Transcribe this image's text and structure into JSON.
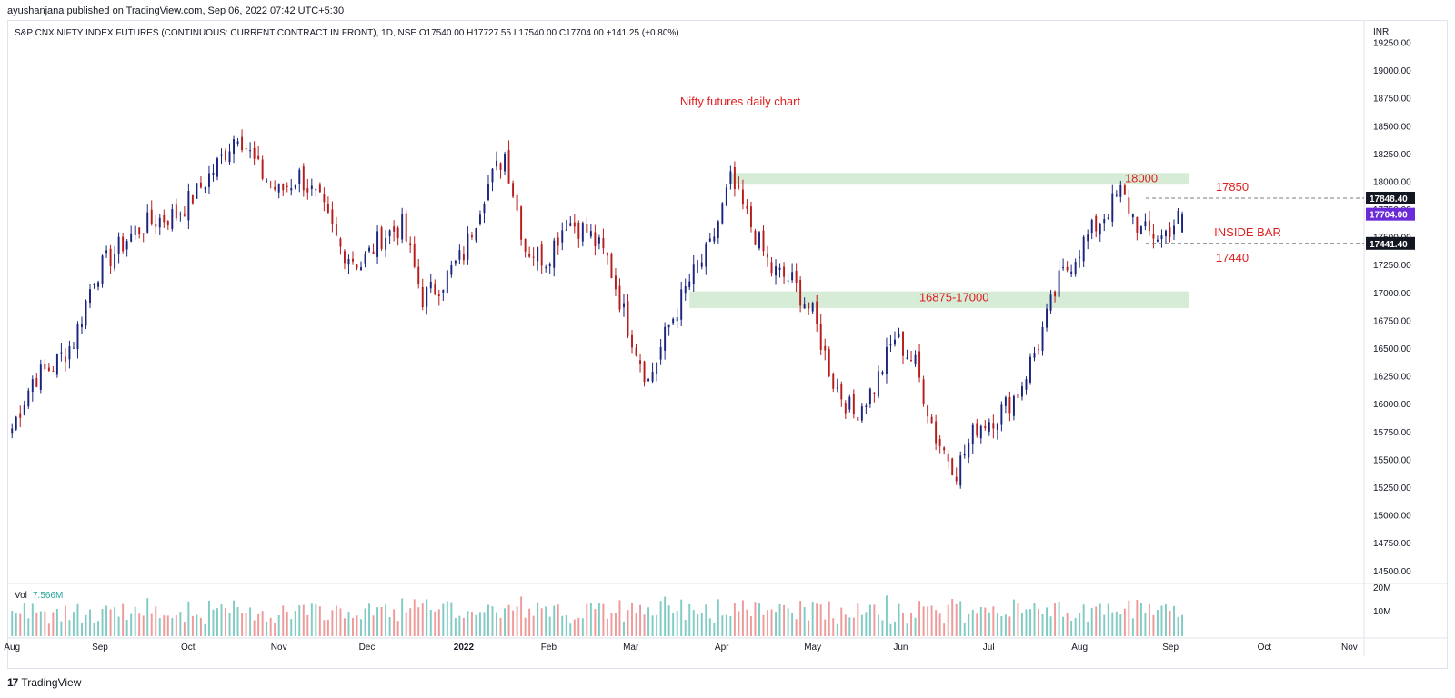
{
  "header": {
    "publisher": "ayushanjana published on TradingView.com, Sep 06, 2022 07:42 UTC+5:30",
    "symbol_line": "S&P CNX NIFTY INDEX FUTURES (CONTINUOUS: CURRENT CONTRACT IN FRONT), 1D, NSE",
    "ohlc": {
      "o": "O17540.00",
      "h": "H17727.55",
      "l": "L17540.00",
      "c": "C17704.00",
      "chg": "+141.25 (+0.80%)"
    }
  },
  "footer": {
    "brand": "TradingView",
    "logo": "tv-logo-icon"
  },
  "colors": {
    "up": "#1a237e",
    "down": "#b71c1c",
    "vol_up": "#80cbc4",
    "vol_down": "#ef9a9a",
    "zone": "#c8e6c9",
    "annot": "#e02020",
    "price_tag": "#6c2bd9",
    "tag_dark": "#131722"
  },
  "chart_data": {
    "type": "candlestick",
    "title": "Nifty futures daily chart",
    "currency": "INR",
    "ylim": [
      14400,
      19450
    ],
    "y_ticks": [
      14500,
      14750,
      15000,
      15250,
      15500,
      15750,
      16000,
      16250,
      16500,
      16750,
      17000,
      17250,
      17500,
      17750,
      18000,
      18250,
      18500,
      18750,
      19000,
      19250
    ],
    "x_ticks": [
      {
        "label": "Aug",
        "date": "2021-08-02"
      },
      {
        "label": "Sep",
        "date": "2021-09-01"
      },
      {
        "label": "Oct",
        "date": "2021-10-01"
      },
      {
        "label": "Nov",
        "date": "2021-11-01"
      },
      {
        "label": "Dec",
        "date": "2021-12-01"
      },
      {
        "label": "2022",
        "date": "2022-01-03"
      },
      {
        "label": "Feb",
        "date": "2022-02-01"
      },
      {
        "label": "Mar",
        "date": "2022-03-01"
      },
      {
        "label": "Apr",
        "date": "2022-04-01"
      },
      {
        "label": "May",
        "date": "2022-05-02"
      },
      {
        "label": "Jun",
        "date": "2022-06-01"
      },
      {
        "label": "Jul",
        "date": "2022-07-01"
      },
      {
        "label": "Aug",
        "date": "2022-08-01"
      },
      {
        "label": "Sep",
        "date": "2022-09-01"
      },
      {
        "label": "Oct",
        "date": "2022-10-03"
      },
      {
        "label": "Nov",
        "date": "2022-11-01"
      }
    ],
    "xlim": [
      "2021-08-01",
      "2022-11-06"
    ],
    "close_path": [
      [
        "2021-08-02",
        15780
      ],
      [
        "2021-08-09",
        16220
      ],
      [
        "2021-08-16",
        16340
      ],
      [
        "2021-08-23",
        16560
      ],
      [
        "2021-08-30",
        17150
      ],
      [
        "2021-09-06",
        17360
      ],
      [
        "2021-09-13",
        17560
      ],
      [
        "2021-09-20",
        17650
      ],
      [
        "2021-09-27",
        17700
      ],
      [
        "2021-10-04",
        17900
      ],
      [
        "2021-10-11",
        18150
      ],
      [
        "2021-10-18",
        18450
      ],
      [
        "2021-10-25",
        18100
      ],
      [
        "2021-11-01",
        17900
      ],
      [
        "2021-11-08",
        18050
      ],
      [
        "2021-11-15",
        17800
      ],
      [
        "2021-11-22",
        17400
      ],
      [
        "2021-11-29",
        17250
      ],
      [
        "2021-12-06",
        17500
      ],
      [
        "2021-12-13",
        17600
      ],
      [
        "2021-12-20",
        16950
      ],
      [
        "2021-12-27",
        17100
      ],
      [
        "2022-01-03",
        17350
      ],
      [
        "2022-01-10",
        17900
      ],
      [
        "2022-01-17",
        18250
      ],
      [
        "2022-01-24",
        17400
      ],
      [
        "2022-01-31",
        17300
      ],
      [
        "2022-02-07",
        17650
      ],
      [
        "2022-02-14",
        17550
      ],
      [
        "2022-02-21",
        17300
      ],
      [
        "2022-02-28",
        16700
      ],
      [
        "2022-03-07",
        16200
      ],
      [
        "2022-03-14",
        16700
      ],
      [
        "2022-03-21",
        17100
      ],
      [
        "2022-03-28",
        17400
      ],
      [
        "2022-04-04",
        18000
      ],
      [
        "2022-04-11",
        17600
      ],
      [
        "2022-04-18",
        17200
      ],
      [
        "2022-04-25",
        17100
      ],
      [
        "2022-05-02",
        16800
      ],
      [
        "2022-05-09",
        16200
      ],
      [
        "2022-05-16",
        15900
      ],
      [
        "2022-05-23",
        16150
      ],
      [
        "2022-05-30",
        16600
      ],
      [
        "2022-06-06",
        16350
      ],
      [
        "2022-06-13",
        15700
      ],
      [
        "2022-06-20",
        15400
      ],
      [
        "2022-06-27",
        15800
      ],
      [
        "2022-07-04",
        15900
      ],
      [
        "2022-07-11",
        16100
      ],
      [
        "2022-07-18",
        16550
      ],
      [
        "2022-07-25",
        17100
      ],
      [
        "2022-08-01",
        17400
      ],
      [
        "2022-08-08",
        17650
      ],
      [
        "2022-08-15",
        17900
      ],
      [
        "2022-08-22",
        17550
      ],
      [
        "2022-08-29",
        17500
      ],
      [
        "2022-09-05",
        17704
      ]
    ],
    "volume": {
      "label": "Vol",
      "last": "7.566M",
      "ticks": [
        "20M",
        "10M"
      ],
      "ymax": 22
    },
    "zones": [
      {
        "name": "resistance-zone",
        "from": "2022-04-04",
        "to": "2022-09-05",
        "low": 17970,
        "high": 18075,
        "label": "18000"
      },
      {
        "name": "support-zone",
        "from": "2022-03-21",
        "to": "2022-09-05",
        "low": 16860,
        "high": 17010,
        "label": "16875-17000"
      }
    ],
    "levels": [
      {
        "value": 17848.4,
        "tag": "17848.40",
        "label": "17850"
      },
      {
        "value": 17441.4,
        "tag": "17441.40",
        "label": "17440"
      }
    ],
    "last_price_tag": "17704.00",
    "annotations": [
      {
        "text": "INSIDE BAR"
      }
    ]
  }
}
